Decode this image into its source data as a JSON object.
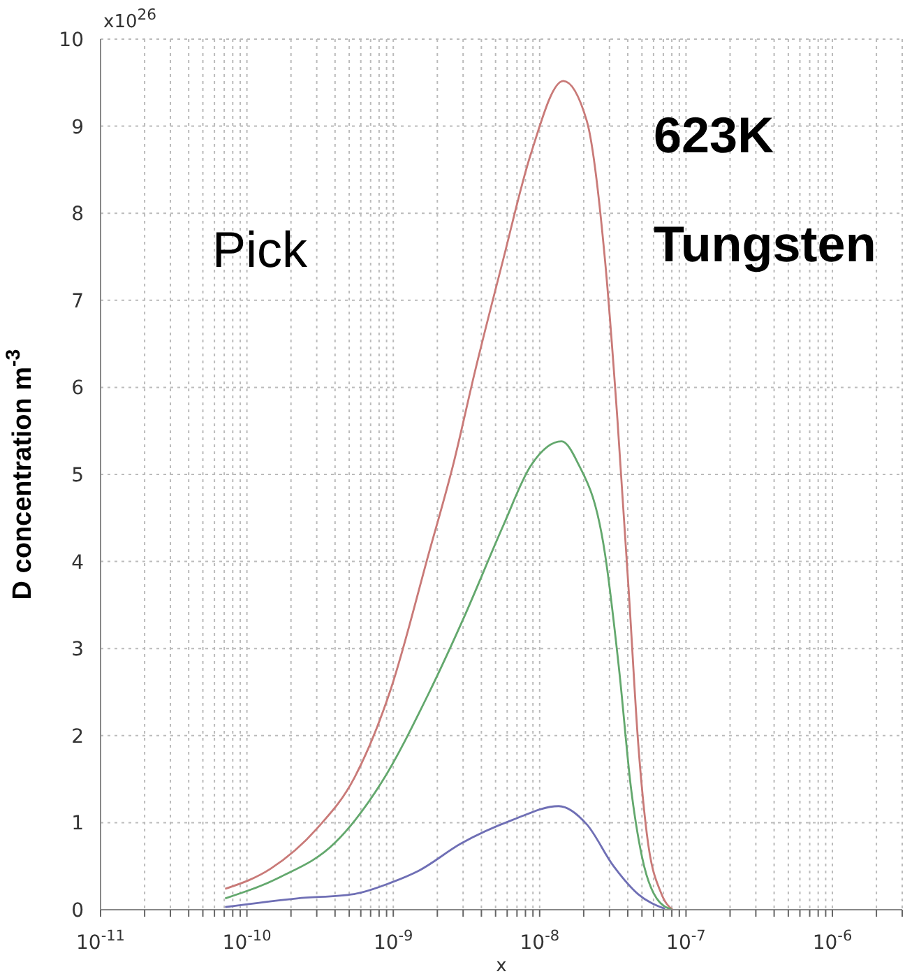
{
  "chart_data": {
    "type": "line",
    "xlabel": "x",
    "ylabel": "D concentration m$^{-3}$",
    "annotations": [
      "x10$^{26}$",
      "Pick",
      "623K",
      "Tungsten"
    ],
    "log": "x",
    "grid": true,
    "marker": "none",
    "line_style": "solid",
    "xlim": [
      1e-11,
      3e-06
    ],
    "xticks": [
      {
        "value": 1e-11,
        "label": "10$^{-11}$"
      },
      {
        "value": 2e-11,
        "label": null
      },
      {
        "value": 3e-11,
        "label": null
      },
      {
        "value": 4e-11,
        "label": null
      },
      {
        "value": 5e-11,
        "label": null
      },
      {
        "value": 6e-11,
        "label": null
      },
      {
        "value": 7e-11,
        "label": null
      },
      {
        "value": 8e-11,
        "label": null
      },
      {
        "value": 9e-11,
        "label": null
      },
      {
        "value": 1e-10,
        "label": "10$^{-10}$"
      },
      {
        "value": 2e-10,
        "label": null
      },
      {
        "value": 3e-10,
        "label": null
      },
      {
        "value": 4e-10,
        "label": null
      },
      {
        "value": 5e-10,
        "label": null
      },
      {
        "value": 6e-10,
        "label": null
      },
      {
        "value": 7e-10,
        "label": null
      },
      {
        "value": 8e-10,
        "label": null
      },
      {
        "value": 9e-10,
        "label": null
      },
      {
        "value": 1e-09,
        "label": "10$^{-9}$"
      },
      {
        "value": 2e-09,
        "label": null
      },
      {
        "value": 3e-09,
        "label": null
      },
      {
        "value": 4e-09,
        "label": null
      },
      {
        "value": 5e-09,
        "label": null
      },
      {
        "value": 6e-09,
        "label": null
      },
      {
        "value": 7e-09,
        "label": null
      },
      {
        "value": 8e-09,
        "label": null
      },
      {
        "value": 9e-09,
        "label": null
      },
      {
        "value": 1e-08,
        "label": "10$^{-8}$"
      },
      {
        "value": 2e-08,
        "label": null
      },
      {
        "value": 3e-08,
        "label": null
      },
      {
        "value": 4e-08,
        "label": null
      },
      {
        "value": 5e-08,
        "label": null
      },
      {
        "value": 6e-08,
        "label": null
      },
      {
        "value": 7e-08,
        "label": null
      },
      {
        "value": 8e-08,
        "label": null
      },
      {
        "value": 9e-08,
        "label": null
      },
      {
        "value": 1e-07,
        "label": "10$^{-7}$"
      },
      {
        "value": 2e-07,
        "label": null
      },
      {
        "value": 3e-07,
        "label": null
      },
      {
        "value": 4e-07,
        "label": null
      },
      {
        "value": 5e-07,
        "label": null
      },
      {
        "value": 6e-07,
        "label": null
      },
      {
        "value": 7e-07,
        "label": null
      },
      {
        "value": 8e-07,
        "label": null
      },
      {
        "value": 9e-07,
        "label": null
      },
      {
        "value": 1e-06,
        "label": "10$^{-6}$"
      },
      {
        "value": 2e-06,
        "label": null
      },
      {
        "value": 3e-06,
        "label": null
      }
    ],
    "ylim": [
      0,
      10
    ],
    "yticks": [
      0,
      1,
      2,
      3,
      4,
      5,
      6,
      7,
      8,
      9,
      10
    ],
    "series": [
      {
        "color": "#c97a78",
        "x": [
          7.1e-11,
          1.45e-10,
          3e-10,
          5.4e-10,
          9.6e-10,
          1.74e-09,
          2.6e-09,
          3.6e-09,
          5.6e-09,
          8.7e-09,
          1.45e-08,
          2.1e-08,
          2.8e-08,
          3.4e-08,
          4.1e-08,
          4.7e-08,
          5.4e-08,
          6.8e-08,
          8.1e-08
        ],
        "values": [
          0.24,
          0.47,
          0.93,
          1.51,
          2.53,
          4.08,
          5.15,
          6.17,
          7.45,
          8.68,
          9.52,
          9.06,
          7.45,
          5.63,
          3.55,
          1.94,
          0.87,
          0.18,
          0
        ]
      },
      {
        "color": "#63a86d",
        "x": [
          7.1e-11,
          1.66e-10,
          4e-10,
          8.3e-10,
          1.74e-09,
          3.1e-09,
          5.6e-09,
          8.7e-09,
          1.41e-08,
          1.8e-08,
          2.8e-08,
          3.5e-08,
          4.2e-08,
          5e-08,
          6.3e-08,
          8e-08
        ],
        "values": [
          0.13,
          0.37,
          0.77,
          1.46,
          2.48,
          3.39,
          4.4,
          5.1,
          5.38,
          5.15,
          4.08,
          2.74,
          1.41,
          0.61,
          0.13,
          0
        ]
      },
      {
        "color": "#6f6fb5",
        "x": [
          7.1e-11,
          2.2e-10,
          5.4e-10,
          9.6e-10,
          1.5e-09,
          2.9e-09,
          6.5e-09,
          1.35e-08,
          2.1e-08,
          3.2e-08,
          4.7e-08,
          7.2e-08
        ],
        "values": [
          0.03,
          0.13,
          0.18,
          0.31,
          0.45,
          0.76,
          1.03,
          1.19,
          0.98,
          0.5,
          0.18,
          0.01
        ]
      }
    ]
  }
}
